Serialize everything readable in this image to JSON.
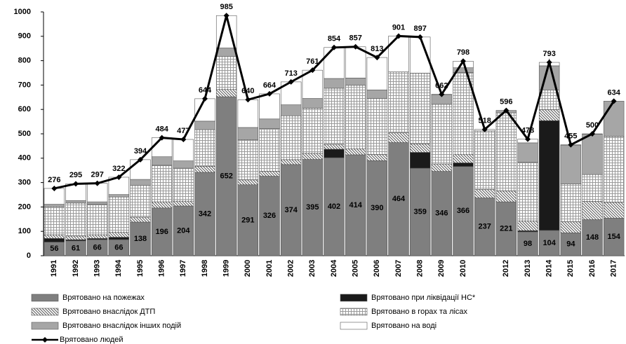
{
  "chart_data": {
    "type": "bar",
    "stacked": true,
    "categories": [
      "1991",
      "1992",
      "1993",
      "1994",
      "1995",
      "1996",
      "1997",
      "1998",
      "1999",
      "2000",
      "2001",
      "2002",
      "2003",
      "2004",
      "2005",
      "2006",
      "2007",
      "2008",
      "2009",
      "2010",
      null,
      "2012",
      "2013",
      "2014",
      "2015",
      "2016",
      "2017"
    ],
    "ylim": [
      0,
      1000
    ],
    "yticks": [
      0,
      100,
      200,
      300,
      400,
      500,
      600,
      700,
      800,
      900,
      1000
    ],
    "grid": false,
    "series": [
      {
        "name": "Врятовано на пожежах",
        "color": "#7f7f7f",
        "pattern": "solid",
        "show_labels": true,
        "values": [
          56,
          61,
          66,
          66,
          138,
          196,
          204,
          342,
          652,
          291,
          326,
          374,
          395,
          402,
          414,
          390,
          464,
          359,
          346,
          366,
          237,
          221,
          98,
          104,
          94,
          148,
          154
        ]
      },
      {
        "name": "Врятовано при ліквідації НС*",
        "color": "#1a1a1a",
        "pattern": "solid",
        "values": [
          15,
          5,
          5,
          10,
          0,
          0,
          0,
          0,
          0,
          0,
          0,
          0,
          0,
          35,
          0,
          0,
          0,
          65,
          0,
          15,
          0,
          0,
          5,
          450,
          0,
          0,
          0
        ]
      },
      {
        "name": "Врятовано внаслідок ДТП",
        "color": "#555555",
        "pattern": "hatch",
        "values": [
          15,
          15,
          15,
          20,
          20,
          25,
          20,
          25,
          30,
          20,
          20,
          20,
          25,
          20,
          25,
          25,
          40,
          35,
          30,
          35,
          35,
          45,
          40,
          45,
          45,
          75,
          65
        ]
      },
      {
        "name": "Врятовано в горах та лісах",
        "color": "#9a9a9a",
        "pattern": "grid",
        "values": [
          115,
          135,
          125,
          145,
          130,
          150,
          135,
          150,
          135,
          165,
          175,
          180,
          185,
          230,
          260,
          230,
          250,
          290,
          245,
          335,
          240,
          320,
          240,
          80,
          155,
          110,
          270
        ]
      },
      {
        "name": "Врятовано внаслідок  інших подій",
        "color": "#a6a6a6",
        "pattern": "solid",
        "values": [
          10,
          10,
          10,
          10,
          25,
          35,
          30,
          35,
          35,
          50,
          40,
          45,
          40,
          40,
          30,
          35,
          0,
          0,
          40,
          20,
          0,
          10,
          80,
          100,
          160,
          165,
          145
        ]
      },
      {
        "name": "Врятовано на воді",
        "color": "#ffffff",
        "pattern": "solid",
        "values": [
          65,
          69,
          76,
          71,
          81,
          78,
          88,
          92,
          133,
          114,
          103,
          94,
          116,
          127,
          128,
          133,
          147,
          148,
          1,
          27,
          6,
          0,
          15,
          14,
          1,
          2,
          0
        ]
      },
      {
        "name": "Врятовано людей",
        "color": "#000000",
        "type": "line",
        "marker": "diamond",
        "show_labels": true,
        "values": [
          276,
          295,
          297,
          322,
          394,
          484,
          477,
          644,
          985,
          640,
          664,
          713,
          761,
          854,
          857,
          813,
          901,
          897,
          662,
          798,
          518,
          596,
          478,
          793,
          455,
          500,
          634
        ]
      }
    ]
  }
}
